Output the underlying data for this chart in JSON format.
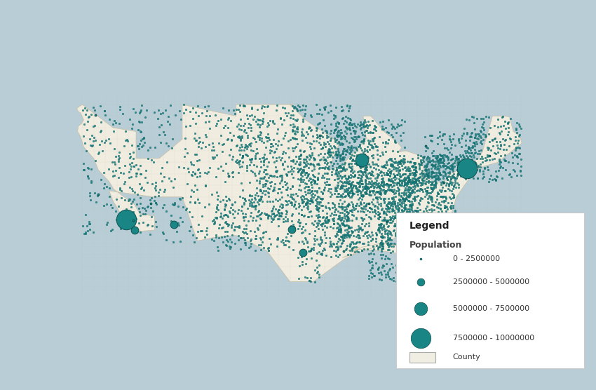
{
  "background_color": "#b8cdd6",
  "land_color": "#f0ece0",
  "county_edge_color": "#c8bfa5",
  "state_edge_color": "#a09080",
  "water_color": "#b8cdd6",
  "lake_color": "#c5d8e0",
  "dot_color": "#1a8585",
  "dot_edge_color": "#0d5050",
  "legend_title": "Legend",
  "legend_subtitle": "Population",
  "legend_labels": [
    "0 - 2500000",
    "2500000 - 5000000",
    "5000000 - 7500000",
    "7500000 - 10000000"
  ],
  "legend_dot_sizes": [
    4,
    60,
    180,
    420
  ],
  "size_thresholds": [
    2500000,
    5000000,
    7500000
  ],
  "dot_sizes": [
    4,
    60,
    180,
    420
  ],
  "large_counties": [
    {
      "lon": -118.25,
      "lat": 34.05,
      "pop": 10100000
    },
    {
      "lon": -74.0,
      "lat": 40.71,
      "pop": 8400000
    },
    {
      "lon": -87.65,
      "lat": 41.85,
      "pop": 5200000
    },
    {
      "lon": -95.37,
      "lat": 29.76,
      "pop": 4700000
    },
    {
      "lon": -112.07,
      "lat": 33.45,
      "pop": 4500000
    },
    {
      "lon": -117.15,
      "lat": 32.72,
      "pop": 3300000
    },
    {
      "lon": -80.19,
      "lat": 25.77,
      "pop": 2800000
    },
    {
      "lon": -96.8,
      "lat": 32.78,
      "pop": 2600000
    },
    {
      "lon": -122.33,
      "lat": 47.6,
      "pop": 2200000
    },
    {
      "lon": -115.14,
      "lat": 36.17,
      "pop": 2200000
    },
    {
      "lon": -84.39,
      "lat": 33.75,
      "pop": 1050000
    },
    {
      "lon": -86.77,
      "lat": 36.17,
      "pop": 930000
    },
    {
      "lon": -90.07,
      "lat": 29.95,
      "pop": 1400000
    },
    {
      "lon": -117.4,
      "lat": 33.95,
      "pop": 2100000
    },
    {
      "lon": -121.89,
      "lat": 37.34,
      "pop": 1900000
    },
    {
      "lon": -80.08,
      "lat": 26.71,
      "pop": 1400000
    },
    {
      "lon": -81.38,
      "lat": 28.54,
      "pop": 1300000
    },
    {
      "lon": -82.46,
      "lat": 27.95,
      "pop": 1200000
    },
    {
      "lon": -77.03,
      "lat": 38.89,
      "pop": 1100000
    },
    {
      "lon": -93.1,
      "lat": 44.95,
      "pop": 1270000
    },
    {
      "lon": -104.98,
      "lat": 39.74,
      "pop": 650000
    },
    {
      "lon": -75.16,
      "lat": 39.95,
      "pop": 1580000
    },
    {
      "lon": -71.06,
      "lat": 42.36,
      "pop": 800000
    },
    {
      "lon": -79.38,
      "lat": 43.65,
      "pop": 700000
    }
  ],
  "xlim": [
    -125,
    -65
  ],
  "ylim": [
    23,
    51
  ],
  "figsize": [
    8.5,
    5.56
  ],
  "dpi": 100
}
